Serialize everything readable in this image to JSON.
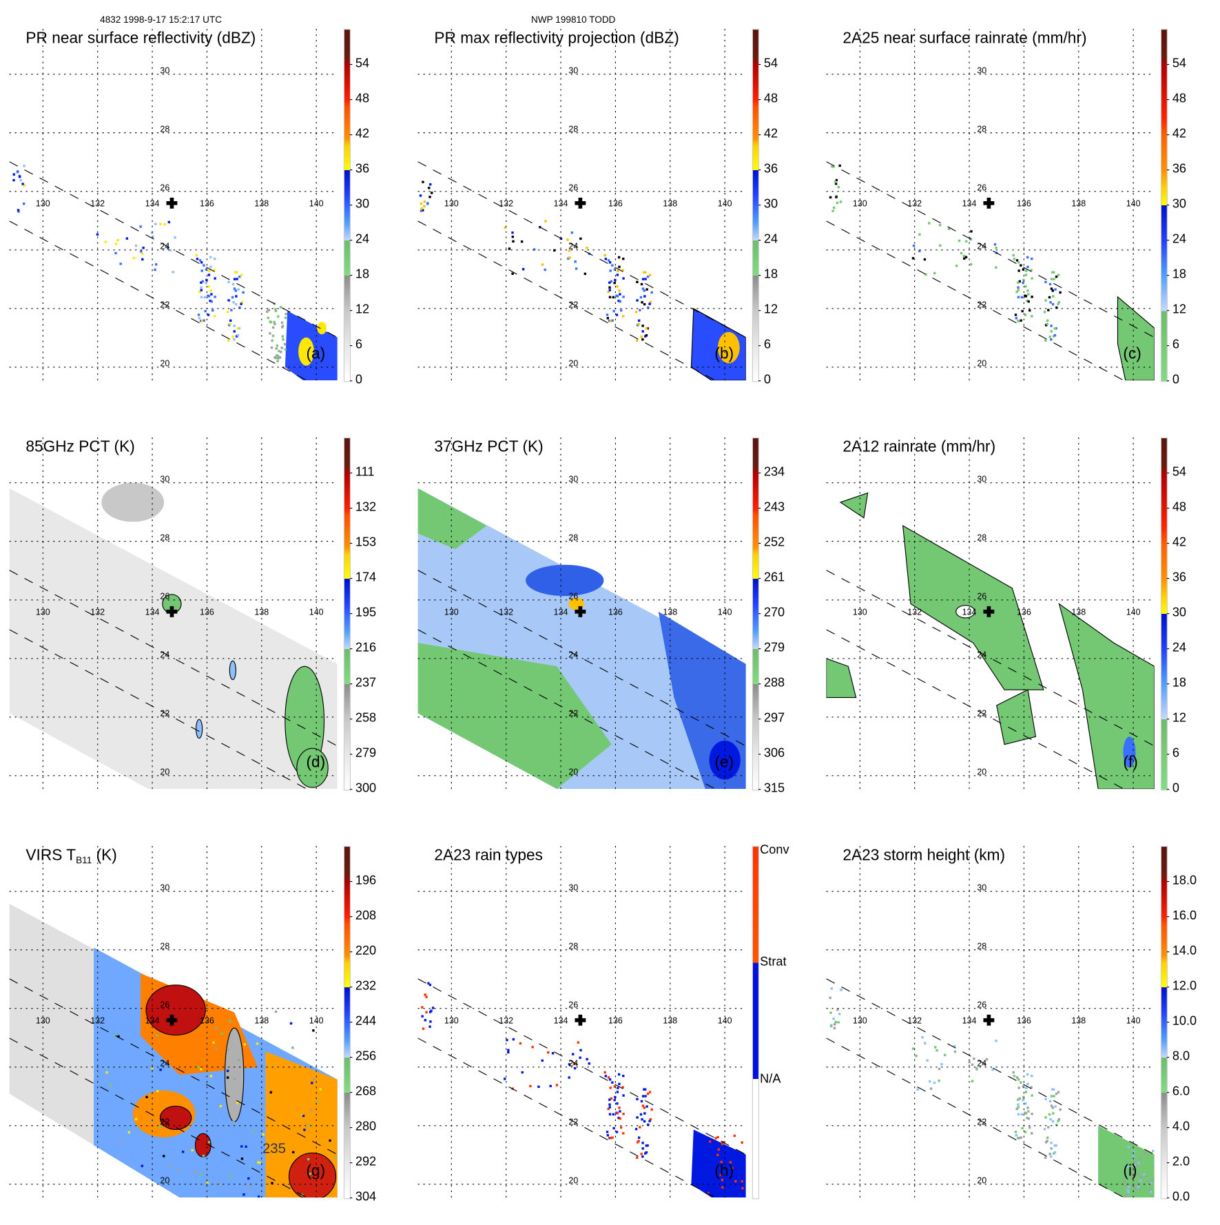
{
  "header": {
    "orbit_time": "4832 1998-9-17 15:2:17 UTC",
    "storm_id": "NWP 199810 TODD"
  },
  "grid": {
    "lon_labels": [
      "130",
      "132",
      "134",
      "136",
      "138",
      "140"
    ],
    "lat_labels": [
      "30",
      "28",
      "26",
      "24",
      "22",
      "20"
    ],
    "storm_center_marker": "cross-icon"
  },
  "panels": [
    {
      "id": "a",
      "title": "PR near surface reflectivity (dBZ)",
      "letter": "(a)",
      "scale": "std",
      "swath": "pr",
      "colorbar": [
        "54",
        "48",
        "42",
        "36",
        "30",
        "24",
        "18",
        "12",
        "6",
        "0"
      ]
    },
    {
      "id": "b",
      "title": "PR max reflectivity projection (dBZ)",
      "letter": "(b)",
      "scale": "std",
      "swath": "pr",
      "colorbar": [
        "54",
        "48",
        "42",
        "36",
        "30",
        "24",
        "18",
        "12",
        "6",
        "0"
      ]
    },
    {
      "id": "c",
      "title": "2A25 near surface rainrate (mm/hr)",
      "letter": "(c)",
      "scale": "rain",
      "swath": "pr",
      "colorbar": [
        "54",
        "48",
        "42",
        "36",
        "30",
        "24",
        "18",
        "12",
        "6",
        "0"
      ]
    },
    {
      "id": "d",
      "title": "85GHz PCT (K)",
      "letter": "(d)",
      "scale": "std",
      "swath": "tmi85",
      "colorbar": [
        "111",
        "132",
        "153",
        "174",
        "195",
        "216",
        "237",
        "258",
        "279",
        "300"
      ]
    },
    {
      "id": "e",
      "title": "37GHz PCT (K)",
      "letter": "(e)",
      "scale": "std",
      "swath": "tmi37",
      "colorbar": [
        "234",
        "243",
        "252",
        "261",
        "270",
        "279",
        "288",
        "297",
        "306",
        "315"
      ]
    },
    {
      "id": "f",
      "title": "2A12 rainrate (mm/hr)",
      "letter": "(f)",
      "scale": "rain",
      "swath": "tmirain",
      "colorbar": [
        "54",
        "48",
        "42",
        "36",
        "30",
        "24",
        "18",
        "12",
        "6",
        "0"
      ]
    },
    {
      "id": "g",
      "title": "VIRS T",
      "title_sub": "B11",
      "title_suffix": " (K)",
      "letter": "(g)",
      "scale": "std",
      "swath": "virs",
      "annotation": "235",
      "colorbar": [
        "196",
        "208",
        "220",
        "232",
        "244",
        "256",
        "268",
        "280",
        "292",
        "304"
      ]
    },
    {
      "id": "h",
      "title": "2A23 rain types",
      "letter": "(h)",
      "scale": "types",
      "swath": "prtypes",
      "colorbar": [
        "Conv",
        "Strat",
        "N/A"
      ]
    },
    {
      "id": "i",
      "title": "2A23 storm height (km)",
      "letter": "(i)",
      "scale": "std",
      "swath": "prheight",
      "colorbar": [
        "18.0",
        "16.0",
        "14.0",
        "12.0",
        "10.0",
        "8.0",
        "6.0",
        "4.0",
        "2.0",
        "0.0"
      ]
    }
  ],
  "colors": {
    "dark_brown": "#5a1410",
    "red": "#d00000",
    "orange": "#ff8000",
    "yellow": "#ffe800",
    "blue": "#0018e0",
    "light_blue": "#8cc0ff",
    "green": "#74c874",
    "gray": "#a0a0a0"
  }
}
